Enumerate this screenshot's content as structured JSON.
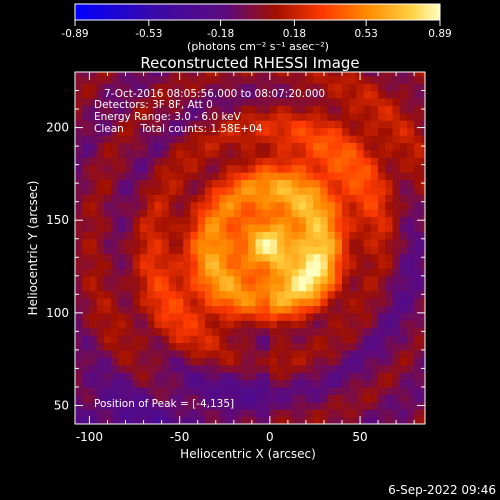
{
  "chart_data": {
    "type": "heatmap",
    "title": "Reconstructed RHESSI Image",
    "xlabel": "Heliocentric X (arcsec)",
    "ylabel": "Heliocentric Y (arcsec)",
    "xlim": [
      -108,
      86
    ],
    "ylim": [
      40,
      230
    ],
    "x_ticks": [
      -100,
      -50,
      0,
      50
    ],
    "y_ticks": [
      50,
      100,
      150,
      200
    ],
    "annotations": [
      "7-Oct-2016 08:05:56.000 to 08:07:20.000",
      "Detectors: 3F 8F, Att 0",
      "Energy Range: 3.0 - 6.0 keV",
      "Clean     Total counts: 1.58E+04"
    ],
    "peak_label": "Position of Peak = [-4,135]",
    "peak_position": [
      -4,
      135
    ],
    "colorbar": {
      "ticks": [
        "-0.89",
        "-0.53",
        "-0.18",
        "0.18",
        "0.53",
        "0.89"
      ],
      "tick_values": [
        -0.89,
        -0.53,
        -0.18,
        0.18,
        0.53,
        0.89
      ],
      "min": -0.89,
      "max": 0.89,
      "unit_text": "(photons cm⁻² s⁻¹ asec⁻²)"
    },
    "colormap": [
      "#0000ff",
      "#3a0aa8",
      "#5e0a7a",
      "#a01000",
      "#ff3a00",
      "#ff8a00",
      "#ffd040",
      "#ffffc0"
    ],
    "grid": false
  },
  "timestamp": "6-Sep-2022 09:46"
}
